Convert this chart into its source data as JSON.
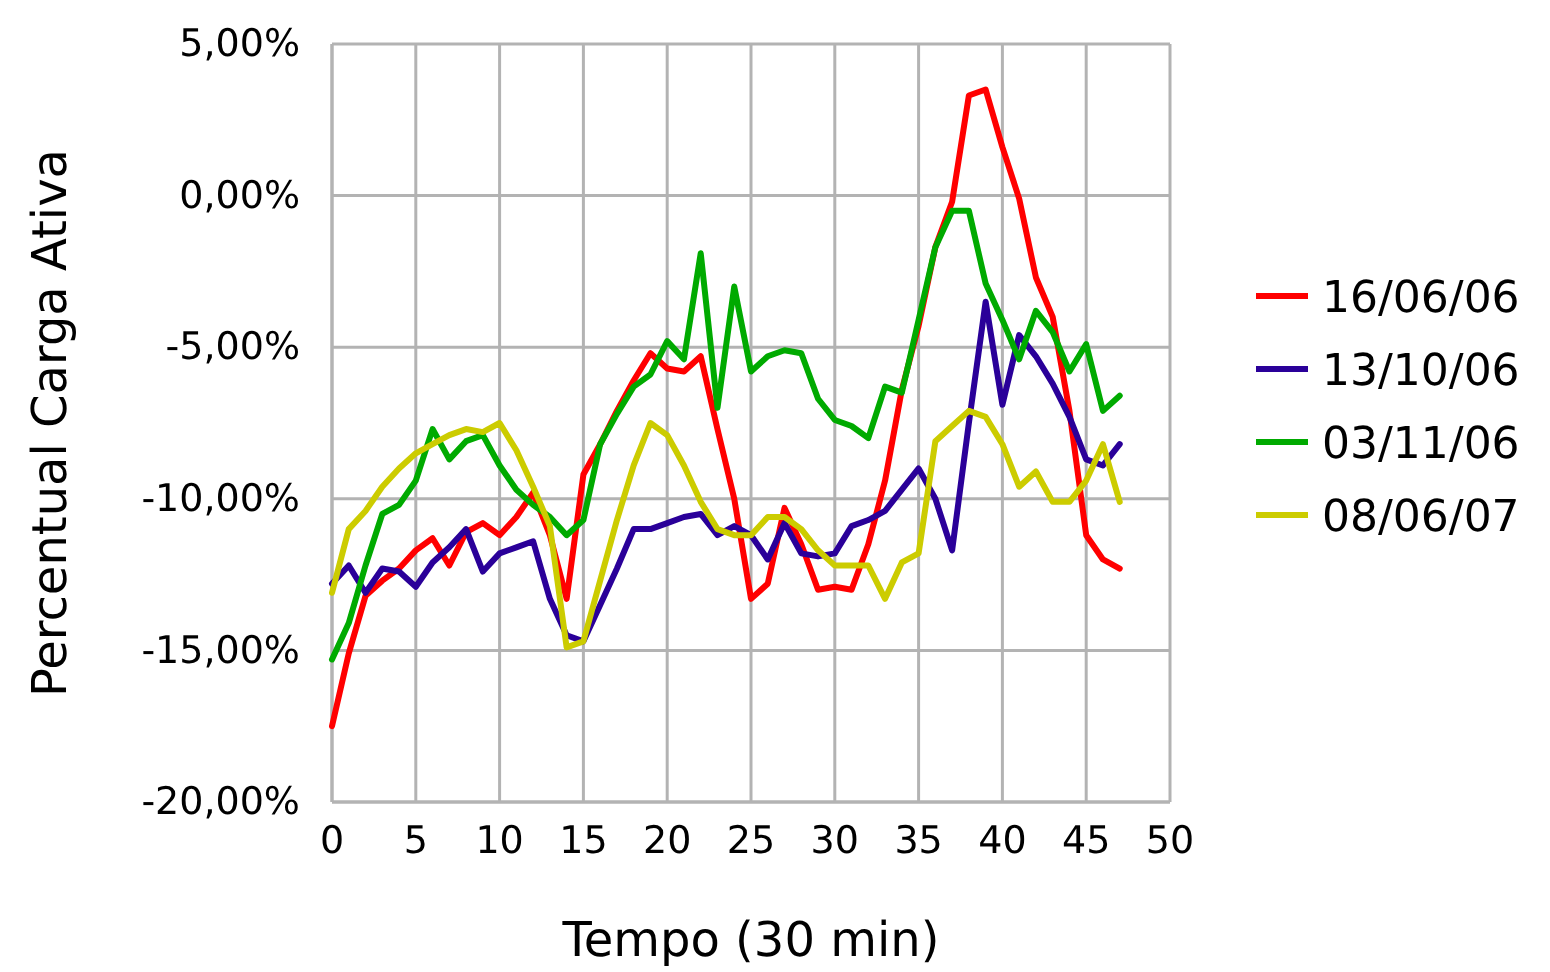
{
  "chart_data": {
    "type": "line",
    "xlabel": "Tempo (30 min)",
    "ylabel": "Percentual Carga Ativa",
    "x": [
      0,
      1,
      2,
      3,
      4,
      5,
      6,
      7,
      8,
      9,
      10,
      11,
      12,
      13,
      14,
      15,
      16,
      17,
      18,
      19,
      20,
      21,
      22,
      23,
      24,
      25,
      26,
      27,
      28,
      29,
      30,
      31,
      32,
      33,
      34,
      35,
      36,
      37,
      38,
      39,
      40,
      41,
      42,
      43,
      44,
      45,
      46,
      47
    ],
    "series": [
      {
        "name": "16/06/06",
        "color": "#ff0000",
        "values": [
          -17.5,
          -15.1,
          -13.2,
          -12.7,
          -12.3,
          -11.7,
          -11.3,
          -12.2,
          -11.1,
          -10.8,
          -11.2,
          -10.6,
          -9.8,
          -11.2,
          -13.3,
          -9.2,
          -8.2,
          -7.1,
          -6.1,
          -5.2,
          -5.7,
          -5.8,
          -5.3,
          -7.7,
          -10.0,
          -13.3,
          -12.8,
          -10.3,
          -11.5,
          -13.0,
          -12.9,
          -13.0,
          -11.5,
          -9.4,
          -6.4,
          -4.3,
          -1.7,
          -0.2,
          3.3,
          3.5,
          1.6,
          -0.1,
          -2.7,
          -4.0,
          -7.1,
          -11.2,
          -12.0,
          -12.3
        ]
      },
      {
        "name": "13/10/06",
        "color": "#2a0099",
        "values": [
          -12.8,
          -12.2,
          -13.1,
          -12.3,
          -12.4,
          -12.9,
          -12.1,
          -11.6,
          -11.0,
          -12.4,
          -11.8,
          -11.6,
          -11.4,
          -13.3,
          -14.5,
          -14.7,
          -13.5,
          -12.3,
          -11.0,
          -11.0,
          -10.8,
          -10.6,
          -10.5,
          -11.2,
          -10.9,
          -11.2,
          -12.0,
          -10.8,
          -11.8,
          -11.9,
          -11.8,
          -10.9,
          -10.7,
          -10.4,
          -9.7,
          -9.0,
          -10.0,
          -11.7,
          -7.5,
          -3.5,
          -6.9,
          -4.6,
          -5.3,
          -6.2,
          -7.3,
          -8.7,
          -8.9,
          -8.2
        ]
      },
      {
        "name": "03/11/06",
        "color": "#00aa00",
        "values": [
          -15.3,
          -14.1,
          -12.2,
          -10.5,
          -10.2,
          -9.4,
          -7.7,
          -8.7,
          -8.1,
          -7.9,
          -8.9,
          -9.7,
          -10.2,
          -10.6,
          -11.2,
          -10.7,
          -8.2,
          -7.2,
          -6.3,
          -5.9,
          -4.8,
          -5.4,
          -1.9,
          -7.0,
          -3.0,
          -5.8,
          -5.3,
          -5.1,
          -5.2,
          -6.7,
          -7.4,
          -7.6,
          -8.0,
          -6.3,
          -6.5,
          -4.1,
          -1.7,
          -0.5,
          -0.5,
          -2.9,
          -4.1,
          -5.4,
          -3.8,
          -4.5,
          -5.8,
          -4.9,
          -7.1,
          -6.6
        ]
      },
      {
        "name": "08/06/07",
        "color": "#cccc00",
        "values": [
          -13.1,
          -11.0,
          -10.4,
          -9.6,
          -9.0,
          -8.5,
          -8.2,
          -7.9,
          -7.7,
          -7.8,
          -7.5,
          -8.4,
          -9.6,
          -10.9,
          -14.9,
          -14.7,
          -12.7,
          -10.7,
          -8.9,
          -7.5,
          -7.9,
          -8.9,
          -10.1,
          -11.0,
          -11.2,
          -11.2,
          -10.6,
          -10.6,
          -11.0,
          -11.7,
          -12.2,
          -12.2,
          -12.2,
          -13.3,
          -12.1,
          -11.8,
          -8.1,
          -7.6,
          -7.1,
          -7.3,
          -8.2,
          -9.6,
          -9.1,
          -10.1,
          -10.1,
          -9.4,
          -8.2,
          -10.1
        ]
      }
    ],
    "xlim": [
      0,
      50
    ],
    "xticks": [
      0,
      5,
      10,
      15,
      20,
      25,
      30,
      35,
      40,
      45,
      50
    ],
    "ylim": [
      -20,
      5
    ],
    "yticks": [
      {
        "value": -20,
        "label": "-20,00%"
      },
      {
        "value": -15,
        "label": "-15,00%"
      },
      {
        "value": -10,
        "label": "-10,00%"
      },
      {
        "value": -5,
        "label": "-5,00%"
      },
      {
        "value": 0,
        "label": "0,00%"
      },
      {
        "value": 5,
        "label": "5,00%"
      }
    ],
    "grid": true,
    "legend": "right",
    "marker": "none",
    "line_style": "solid"
  }
}
